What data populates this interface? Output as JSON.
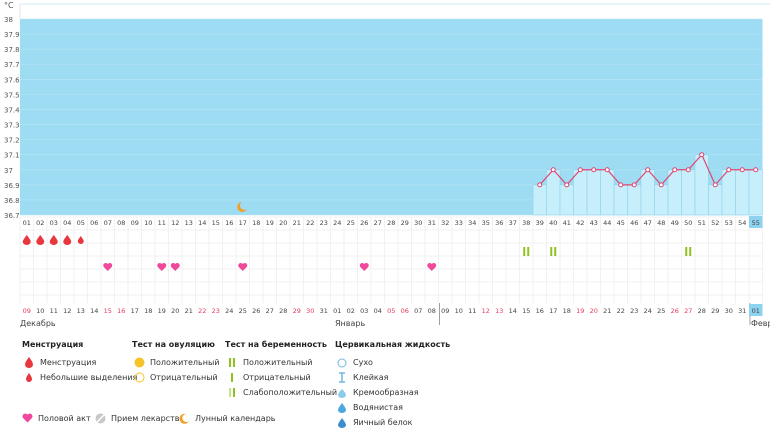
{
  "chart_data": {
    "type": "line",
    "unit_label": "°C",
    "y_ticks": [
      "38",
      "37.9",
      "37.8",
      "37.7",
      "37.6",
      "37.5",
      "37.4",
      "37.3",
      "37.2",
      "37.1",
      "37",
      "36.9",
      "36.8",
      "36.7"
    ],
    "ylim": [
      36.7,
      38.0
    ],
    "cycle_days": [
      "01",
      "02",
      "03",
      "04",
      "05",
      "06",
      "07",
      "08",
      "09",
      "10",
      "11",
      "12",
      "13",
      "14",
      "15",
      "16",
      "17",
      "18",
      "19",
      "20",
      "21",
      "22",
      "23",
      "24",
      "25",
      "26",
      "27",
      "28",
      "29",
      "30",
      "31",
      "32",
      "33",
      "34",
      "35",
      "36",
      "37",
      "38",
      "39",
      "40",
      "41",
      "42",
      "43",
      "44",
      "45",
      "46",
      "47",
      "48",
      "49",
      "50",
      "51",
      "52",
      "53",
      "54",
      "55"
    ],
    "dates": [
      "09",
      "10",
      "11",
      "12",
      "13",
      "14",
      "15",
      "16",
      "17",
      "18",
      "19",
      "20",
      "21",
      "22",
      "23",
      "24",
      "25",
      "26",
      "27",
      "28",
      "29",
      "30",
      "31",
      "01",
      "02",
      "03",
      "04",
      "05",
      "06",
      "07",
      "08",
      "09",
      "10",
      "11",
      "12",
      "13",
      "14",
      "15",
      "16",
      "17",
      "18",
      "19",
      "20",
      "21",
      "22",
      "23",
      "24",
      "25",
      "26",
      "27",
      "28",
      "29",
      "30",
      "31",
      "01"
    ],
    "weekend_dates_index": [
      0,
      6,
      7,
      13,
      14,
      20,
      21,
      27,
      28,
      34,
      35,
      41,
      42,
      48,
      49
    ],
    "series": [
      {
        "x": [
          39,
          40,
          41,
          42,
          43,
          44,
          45,
          46,
          47,
          48,
          49,
          50,
          51,
          52,
          53,
          54,
          55
        ],
        "values": [
          36.9,
          37.0,
          36.9,
          37.0,
          37.0,
          37.0,
          36.9,
          36.9,
          37.0,
          36.9,
          37.0,
          37.0,
          37.1,
          36.9,
          37.0,
          37.0,
          37.0
        ]
      }
    ],
    "menstruation_days": [
      1,
      2,
      3,
      4
    ],
    "light_discharge_days": [
      5
    ],
    "intercourse_days": [
      7,
      11,
      12,
      17,
      26,
      31
    ],
    "pregnancy_test_positive_days": [
      38,
      40,
      50
    ],
    "lunar_day": 17,
    "current_day": 55
  },
  "months": {
    "december": "Декабрь",
    "january": "Январь",
    "february": "Февр"
  },
  "legend": {
    "menstruation": {
      "title": "Менструация",
      "items": [
        "Менструация",
        "Небольшие выделения"
      ]
    },
    "ovulation": {
      "title": "Тест на овуляцию",
      "items": [
        "Положительный",
        "Отрицательный"
      ]
    },
    "pregnancy": {
      "title": "Тест на беременность",
      "items": [
        "Положительный",
        "Отрицательный",
        "Слабоположительный"
      ]
    },
    "cervical": {
      "title": "Цервикальная жидкость",
      "items": [
        "Сухо",
        "Клейкая",
        "Кремообразная",
        "Водянистая",
        "Яичный белок"
      ]
    },
    "bottom": [
      "Половой акт",
      "Прием лекарств",
      "Лунный календарь"
    ]
  },
  "colors": {
    "fill": "#9ddcf3",
    "line": "#e04570",
    "period": "#e8373d",
    "heart": "#f0489b",
    "green": "#8fc21e",
    "yellow": "#f6c42a",
    "weekend": "#e63a5d"
  }
}
